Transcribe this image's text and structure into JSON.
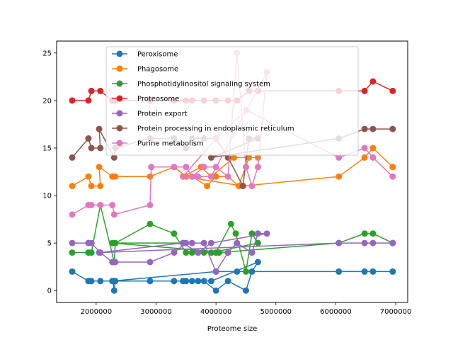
{
  "chart_data": {
    "type": "line",
    "title": "",
    "xlabel": "Proteome size",
    "ylabel": "",
    "xlim": [
      1340000,
      7200000
    ],
    "ylim": [
      -1.25,
      26.25
    ],
    "x_ticks": [
      2000000,
      3000000,
      4000000,
      5000000,
      6000000,
      7000000
    ],
    "x_tick_labels": [
      "2000000",
      "3000000",
      "4000000",
      "5000000",
      "6000000",
      "7000000"
    ],
    "y_ticks": [
      0,
      5,
      10,
      15,
      20,
      25
    ],
    "y_tick_labels": [
      "0",
      "5",
      "10",
      "15",
      "20",
      "25"
    ],
    "grid": false,
    "legend_position": "upper center",
    "series": [
      {
        "name": "Peroxisome",
        "color": "#1f77b4",
        "points": [
          [
            1600000,
            2
          ],
          [
            1870000,
            1
          ],
          [
            1920000,
            1
          ],
          [
            2070000,
            1
          ],
          [
            2280000,
            1
          ],
          [
            2300000,
            0
          ],
          [
            2320000,
            1
          ],
          [
            2900000,
            1
          ],
          [
            3300000,
            1
          ],
          [
            3500000,
            1
          ],
          [
            3600000,
            1
          ],
          [
            3800000,
            1
          ],
          [
            4000000,
            0
          ],
          [
            4200000,
            1
          ],
          [
            4500000,
            0
          ],
          [
            4600000,
            2
          ],
          [
            4700000,
            3
          ],
          [
            3920000,
            1
          ],
          [
            3700000,
            1
          ],
          [
            3450000,
            1
          ],
          [
            2270000,
            1
          ],
          [
            4000000,
            2
          ],
          [
            4350000,
            2
          ],
          [
            6050000,
            2
          ],
          [
            6480000,
            2
          ],
          [
            6620000,
            2
          ],
          [
            6950000,
            2
          ]
        ]
      },
      {
        "name": "Phagosome",
        "color": "#ff7f0e",
        "points": [
          [
            1600000,
            11
          ],
          [
            1870000,
            12
          ],
          [
            1920000,
            11
          ],
          [
            2070000,
            11
          ],
          [
            2050000,
            13
          ],
          [
            2270000,
            12
          ],
          [
            2320000,
            12
          ],
          [
            2900000,
            12
          ],
          [
            3300000,
            13
          ],
          [
            3500000,
            12
          ],
          [
            3600000,
            12
          ],
          [
            3850000,
            11
          ],
          [
            4000000,
            12
          ],
          [
            4200000,
            12
          ],
          [
            4380000,
            11
          ],
          [
            4550000,
            14
          ],
          [
            4700000,
            14
          ],
          [
            4300000,
            14
          ],
          [
            3920000,
            12
          ],
          [
            3750000,
            13
          ],
          [
            3450000,
            12
          ],
          [
            4450000,
            11
          ],
          [
            6050000,
            12
          ],
          [
            6480000,
            14
          ],
          [
            6620000,
            15
          ],
          [
            6950000,
            13
          ]
        ]
      },
      {
        "name": "Phosphotidylinositol signaling system",
        "color": "#2ca02c",
        "points": [
          [
            1600000,
            4
          ],
          [
            1870000,
            4
          ],
          [
            1920000,
            4
          ],
          [
            2070000,
            9
          ],
          [
            2300000,
            3
          ],
          [
            2320000,
            5
          ],
          [
            2900000,
            7
          ],
          [
            3300000,
            6
          ],
          [
            3500000,
            4
          ],
          [
            3600000,
            4
          ],
          [
            3800000,
            4
          ],
          [
            4000000,
            4
          ],
          [
            4250000,
            7
          ],
          [
            4330000,
            6
          ],
          [
            4500000,
            2
          ],
          [
            4600000,
            6
          ],
          [
            4700000,
            5
          ],
          [
            3920000,
            4
          ],
          [
            3700000,
            4
          ],
          [
            3450000,
            5
          ],
          [
            2270000,
            5
          ],
          [
            4200000,
            4
          ],
          [
            4050000,
            4
          ],
          [
            6050000,
            5
          ],
          [
            6480000,
            6
          ],
          [
            6620000,
            6
          ],
          [
            6950000,
            5
          ]
        ]
      },
      {
        "name": "Proteosome",
        "color": "#d62728",
        "points": [
          [
            1600000,
            20
          ],
          [
            1870000,
            20
          ],
          [
            1920000,
            21
          ],
          [
            2070000,
            21
          ],
          [
            2270000,
            20
          ],
          [
            2320000,
            20
          ],
          [
            2900000,
            20
          ],
          [
            3300000,
            20
          ],
          [
            3500000,
            20
          ],
          [
            3600000,
            20
          ],
          [
            3800000,
            20
          ],
          [
            4000000,
            20
          ],
          [
            4200000,
            20
          ],
          [
            4350000,
            20
          ],
          [
            4550000,
            21
          ],
          [
            4700000,
            21
          ],
          [
            6050000,
            21
          ],
          [
            6480000,
            21
          ],
          [
            6620000,
            22
          ],
          [
            6950000,
            21
          ]
        ]
      },
      {
        "name": "Protein export",
        "color": "#9467bd",
        "points": [
          [
            1600000,
            5
          ],
          [
            1870000,
            5
          ],
          [
            1920000,
            5
          ],
          [
            2070000,
            4
          ],
          [
            2270000,
            3
          ],
          [
            2320000,
            3
          ],
          [
            2900000,
            3
          ],
          [
            3300000,
            4
          ],
          [
            3500000,
            5
          ],
          [
            3600000,
            5
          ],
          [
            3800000,
            5
          ],
          [
            4000000,
            2
          ],
          [
            4200000,
            4
          ],
          [
            4350000,
            5
          ],
          [
            4600000,
            4
          ],
          [
            4700000,
            6
          ],
          [
            4850000,
            6
          ],
          [
            3920000,
            5
          ],
          [
            3700000,
            4
          ],
          [
            3450000,
            5
          ],
          [
            2050000,
            4
          ],
          [
            6050000,
            5
          ],
          [
            6480000,
            5
          ],
          [
            6620000,
            5
          ],
          [
            6950000,
            5
          ]
        ]
      },
      {
        "name": "Protein processing in endoplasmic reticulum",
        "color": "#8c564b",
        "points": [
          [
            1600000,
            14
          ],
          [
            1870000,
            16
          ],
          [
            1920000,
            15
          ],
          [
            2070000,
            15
          ],
          [
            2050000,
            17
          ],
          [
            2300000,
            14
          ],
          [
            2320000,
            15
          ],
          [
            2900000,
            16
          ],
          [
            3300000,
            16
          ],
          [
            3500000,
            15
          ],
          [
            3600000,
            16
          ],
          [
            3800000,
            16
          ],
          [
            4000000,
            16
          ],
          [
            4200000,
            14
          ],
          [
            4450000,
            11
          ],
          [
            4550000,
            16
          ],
          [
            4700000,
            16
          ],
          [
            3920000,
            14
          ],
          [
            6050000,
            16
          ],
          [
            6480000,
            17
          ],
          [
            6620000,
            17
          ],
          [
            6950000,
            17
          ]
        ]
      },
      {
        "name": "Purine metabolism",
        "color": "#e377c2",
        "points": [
          [
            1600000,
            8
          ],
          [
            1870000,
            9
          ],
          [
            1920000,
            9
          ],
          [
            2070000,
            9
          ],
          [
            2270000,
            9
          ],
          [
            2300000,
            8
          ],
          [
            2900000,
            9
          ],
          [
            2920000,
            13
          ],
          [
            3300000,
            13
          ],
          [
            3500000,
            13
          ],
          [
            3600000,
            12
          ],
          [
            3800000,
            13
          ],
          [
            4000000,
            13
          ],
          [
            4200000,
            12
          ],
          [
            4350000,
            25
          ],
          [
            4500000,
            13
          ],
          [
            4600000,
            11
          ],
          [
            4700000,
            13
          ],
          [
            4850000,
            23
          ],
          [
            3920000,
            12
          ],
          [
            3700000,
            12
          ],
          [
            3450000,
            12
          ],
          [
            4000000,
            16
          ],
          [
            4500000,
            19
          ],
          [
            6050000,
            14
          ],
          [
            6480000,
            15
          ],
          [
            6620000,
            14
          ],
          [
            6950000,
            12
          ]
        ]
      }
    ]
  }
}
